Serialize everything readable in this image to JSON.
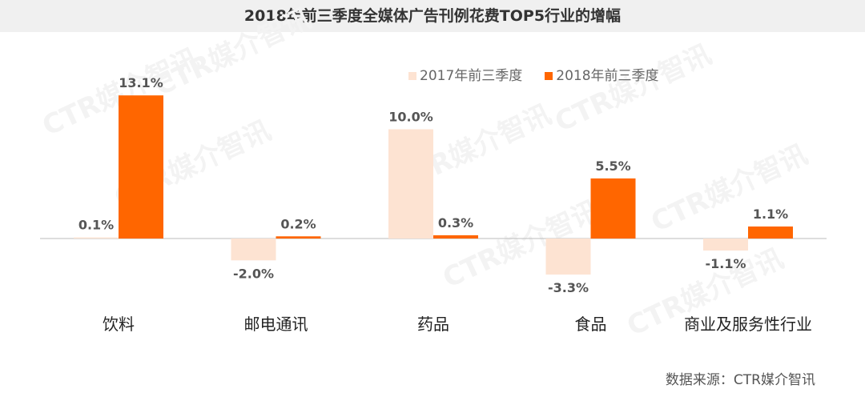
{
  "chart_data": {
    "type": "bar",
    "title": "2018年前三季度全媒体广告刊例花费TOP5行业的增幅",
    "categories": [
      "饮料",
      "邮电通讯",
      "药品",
      "食品",
      "商业及服务性行业"
    ],
    "series": [
      {
        "name": "2017年前三季度",
        "values": [
          0.1,
          -2.0,
          10.0,
          -3.3,
          -1.1
        ],
        "labels": [
          "0.1%",
          "-2.0%",
          "10.0%",
          "-3.3%",
          "-1.1%"
        ],
        "color": "#fde3d2"
      },
      {
        "name": "2018年前三季度",
        "values": [
          13.1,
          0.2,
          0.3,
          5.5,
          1.1
        ],
        "labels": [
          "13.1%",
          "0.2%",
          "0.3%",
          "5.5%",
          "1.1%"
        ],
        "color": "#ff6600"
      }
    ],
    "unit": "%",
    "ylim": [
      -5,
      16
    ],
    "grid": false,
    "legend": "top-right"
  },
  "source": "数据来源：CTR媒介智讯",
  "watermark": "CTR媒介智讯"
}
